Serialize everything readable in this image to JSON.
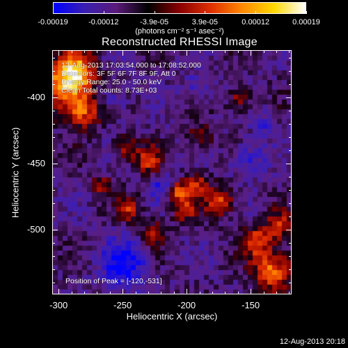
{
  "colorbar": {
    "gradient": [
      "#0000ff",
      "#3b1fb0",
      "#5a1a7a",
      "#000000",
      "#8a0000",
      "#e03000",
      "#ff8a00",
      "#ffd800",
      "#ffffff"
    ],
    "tick_labels": [
      "-0.00019",
      "-0.00012",
      "-3.9e-05",
      "3.9e-05",
      "0.00012",
      "0.00019"
    ],
    "units": "(photons cm⁻² s⁻¹ asec⁻²)"
  },
  "title": "Reconstructed RHESSI Image",
  "info": {
    "time_range": "12-Aug-2013 17:03:54.000 to 17:08:52.000",
    "detectors": "Detectors: 3F 5F 6F 7F 8F 9F, Att 0",
    "energy_range": "Energy Range: 25.0 - 50.0 keV",
    "clean": "Clean    Total counts: 8.73E+03",
    "peak": "Position of Peak = [-120,-531]"
  },
  "axes": {
    "xlabel": "Heliocentric X (arcsec)",
    "ylabel": "Heliocentric Y (arcsec)",
    "xticks": [
      "-300",
      "-250",
      "-200",
      "-150"
    ],
    "yticks": [
      "-400",
      "-450",
      "-500"
    ],
    "xlim": [
      -305,
      -118
    ],
    "ylim": [
      -549,
      -364
    ]
  },
  "footer": {
    "timestamp": "12-Aug-2013 20:18"
  }
}
